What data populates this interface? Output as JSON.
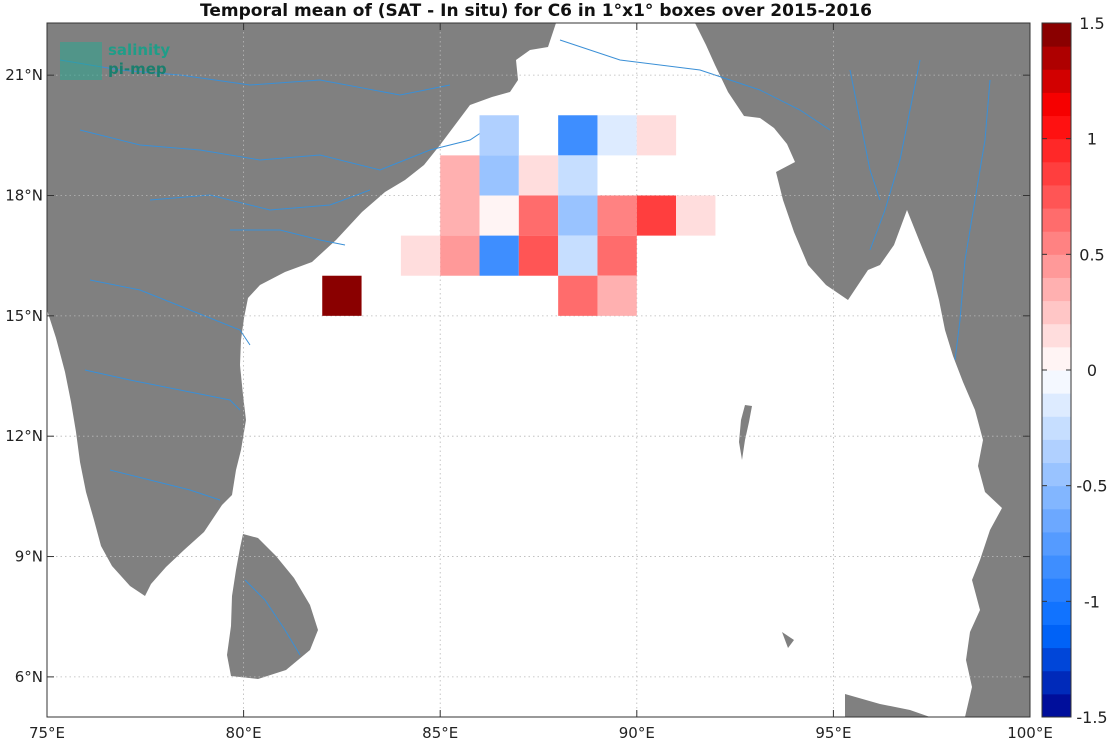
{
  "title": "Temporal mean of (SAT - In situ) for C6 in 1°x1° boxes over 2015-2016",
  "logo": {
    "line1": "salinity",
    "line2": "pi-mep"
  },
  "chart_data": {
    "type": "heatmap",
    "projection": "lon-lat",
    "xlim": [
      75,
      100
    ],
    "ylim": [
      5,
      22.3
    ],
    "x_ticks": [
      75,
      80,
      85,
      90,
      95,
      100
    ],
    "x_tick_labels": [
      "75°E",
      "80°E",
      "85°E",
      "90°E",
      "95°E",
      "100°E"
    ],
    "y_ticks": [
      6,
      9,
      12,
      15,
      18,
      21
    ],
    "y_tick_labels": [
      "6°N",
      "9°N",
      "12°N",
      "15°N",
      "18°N",
      "21°N"
    ],
    "grid": true,
    "colorbar": {
      "range": [
        -1.5,
        1.5
      ],
      "levels": 30,
      "ticks": [
        -1.5,
        -1,
        -0.5,
        0,
        0.5,
        1,
        1.5
      ],
      "tick_labels": [
        "-1.5",
        "-1",
        "-0.5",
        "0",
        "0.5",
        "1",
        "1.5"
      ]
    },
    "land_color": "#808080",
    "river_color": "#3a8fd6",
    "cells": [
      {
        "lon": 86,
        "lat": 19,
        "value": -0.35
      },
      {
        "lon": 88,
        "lat": 19,
        "value": -0.85
      },
      {
        "lon": 89,
        "lat": 19,
        "value": -0.15
      },
      {
        "lon": 90,
        "lat": 19,
        "value": 0.15
      },
      {
        "lon": 85,
        "lat": 18,
        "value": 0.35
      },
      {
        "lon": 86,
        "lat": 18,
        "value": -0.45
      },
      {
        "lon": 87,
        "lat": 18,
        "value": 0.15
      },
      {
        "lon": 88,
        "lat": 18,
        "value": -0.25
      },
      {
        "lon": 85,
        "lat": 17,
        "value": 0.35
      },
      {
        "lon": 86,
        "lat": 17,
        "value": 0.0
      },
      {
        "lon": 87,
        "lat": 17,
        "value": 0.6
      },
      {
        "lon": 88,
        "lat": 17,
        "value": -0.45
      },
      {
        "lon": 89,
        "lat": 17,
        "value": 0.5
      },
      {
        "lon": 90,
        "lat": 17,
        "value": 0.85
      },
      {
        "lon": 91,
        "lat": 17,
        "value": 0.15
      },
      {
        "lon": 84,
        "lat": 16,
        "value": 0.15
      },
      {
        "lon": 85,
        "lat": 16,
        "value": 0.45
      },
      {
        "lon": 86,
        "lat": 16,
        "value": -0.85
      },
      {
        "lon": 87,
        "lat": 16,
        "value": 0.75
      },
      {
        "lon": 88,
        "lat": 16,
        "value": -0.25
      },
      {
        "lon": 89,
        "lat": 16,
        "value": 0.6
      },
      {
        "lon": 82,
        "lat": 15,
        "value": 1.5
      },
      {
        "lon": 88,
        "lat": 15,
        "value": 0.6
      },
      {
        "lon": 89,
        "lat": 15,
        "value": 0.3
      }
    ]
  }
}
